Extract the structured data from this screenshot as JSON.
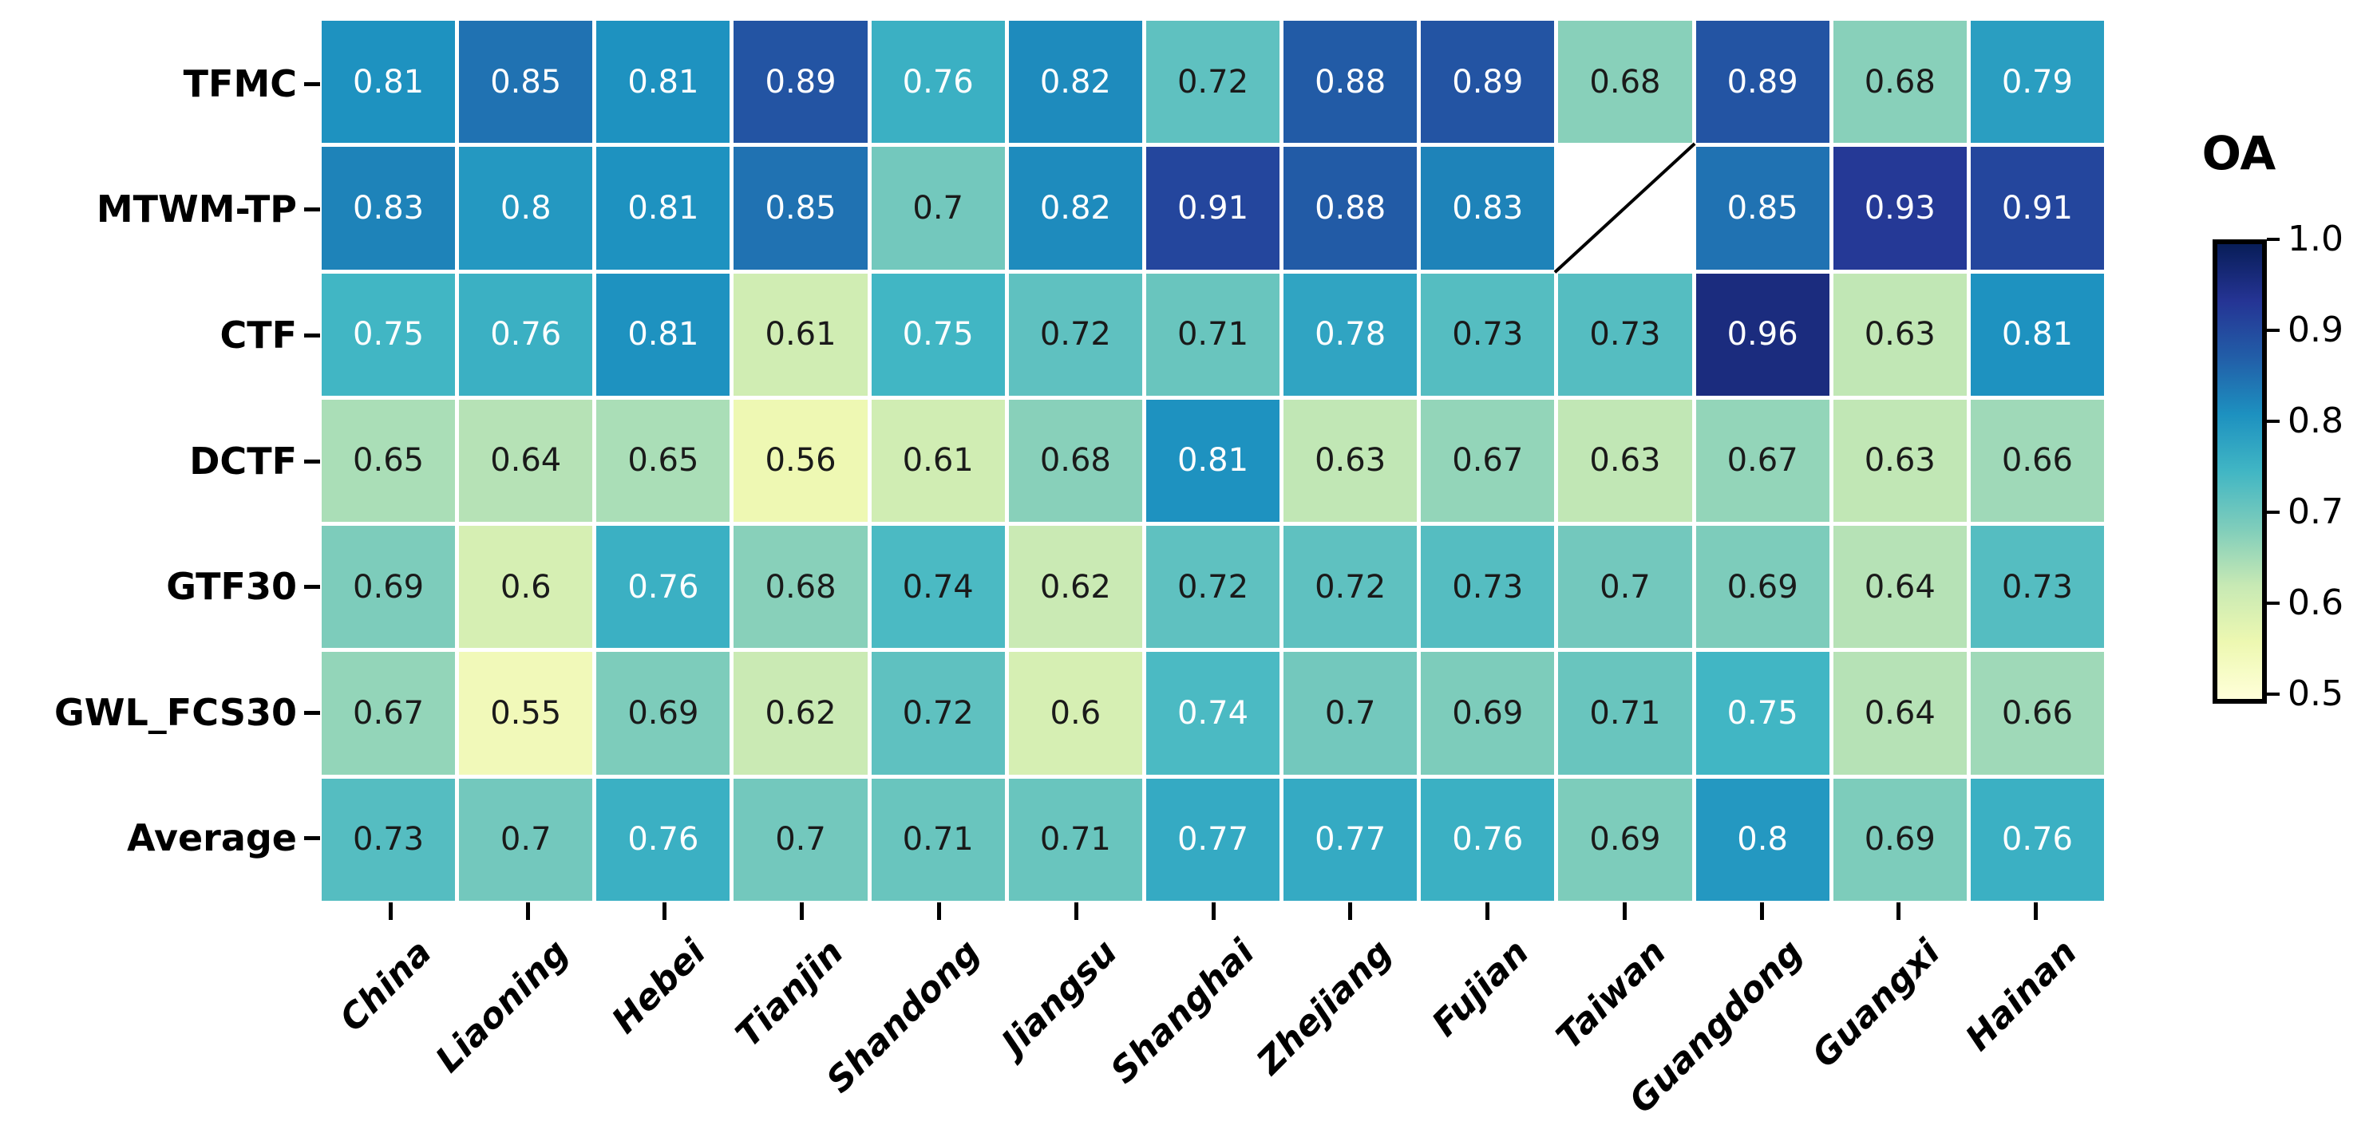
{
  "chart_data": {
    "type": "heatmap",
    "title": "",
    "rows": [
      "TFMC",
      "MTWM-TP",
      "CTF",
      "DCTF",
      "GTF30",
      "GWL_FCS30",
      "Average"
    ],
    "columns": [
      "China",
      "Liaoning",
      "Hebei",
      "Tianjin",
      "Shandong",
      "Jiangsu",
      "Shanghai",
      "Zhejiang",
      "Fujian",
      "Taiwan",
      "Guangdong",
      "Guangxi",
      "Hainan"
    ],
    "values": [
      [
        0.81,
        0.85,
        0.81,
        0.89,
        0.76,
        0.82,
        0.72,
        0.88,
        0.89,
        0.68,
        0.89,
        0.68,
        0.79
      ],
      [
        0.83,
        0.8,
        0.81,
        0.85,
        0.7,
        0.82,
        0.91,
        0.88,
        0.83,
        null,
        0.85,
        0.93,
        0.91
      ],
      [
        0.75,
        0.76,
        0.81,
        0.61,
        0.75,
        0.72,
        0.71,
        0.78,
        0.73,
        0.73,
        0.96,
        0.63,
        0.81
      ],
      [
        0.65,
        0.64,
        0.65,
        0.56,
        0.61,
        0.68,
        0.81,
        0.63,
        0.67,
        0.63,
        0.67,
        0.63,
        0.66
      ],
      [
        0.69,
        0.6,
        0.76,
        0.68,
        0.74,
        0.62,
        0.72,
        0.72,
        0.73,
        0.7,
        0.69,
        0.64,
        0.73
      ],
      [
        0.67,
        0.55,
        0.69,
        0.62,
        0.72,
        0.6,
        0.74,
        0.7,
        0.69,
        0.71,
        0.75,
        0.64,
        0.66
      ],
      [
        0.73,
        0.7,
        0.76,
        0.7,
        0.71,
        0.71,
        0.77,
        0.77,
        0.76,
        0.69,
        0.8,
        0.69,
        0.76
      ]
    ],
    "missing_cells": [
      {
        "row": "MTWM-TP",
        "column": "Taiwan"
      }
    ],
    "annotation_text_rules": {
      "white_text_min_value": 0.74,
      "black_text_exceptions": [
        {
          "row": "GTF30",
          "column": "Shandong"
        }
      ]
    },
    "colorbar": {
      "title": "OA",
      "tick_labels": [
        "1.0",
        "0.9",
        "0.8",
        "0.7",
        "0.6",
        "0.5"
      ],
      "range_min": 0.5,
      "range_max": 1.0,
      "colormap": "YlGnBu",
      "orientation": "vertical",
      "position": "right"
    },
    "colors": {
      "cell_text_dark": "#1a1a1a",
      "cell_text_light": "#ffffff",
      "grid_line": "#ffffff",
      "axis_text": "#000000",
      "missing_cell_background": "#ffffff",
      "missing_cell_slash": "#000000"
    },
    "layout_hints": {
      "x_tick_label_rotation_deg": 45,
      "grid": "white gaps between cells",
      "legend_position": "right colorbar"
    }
  }
}
